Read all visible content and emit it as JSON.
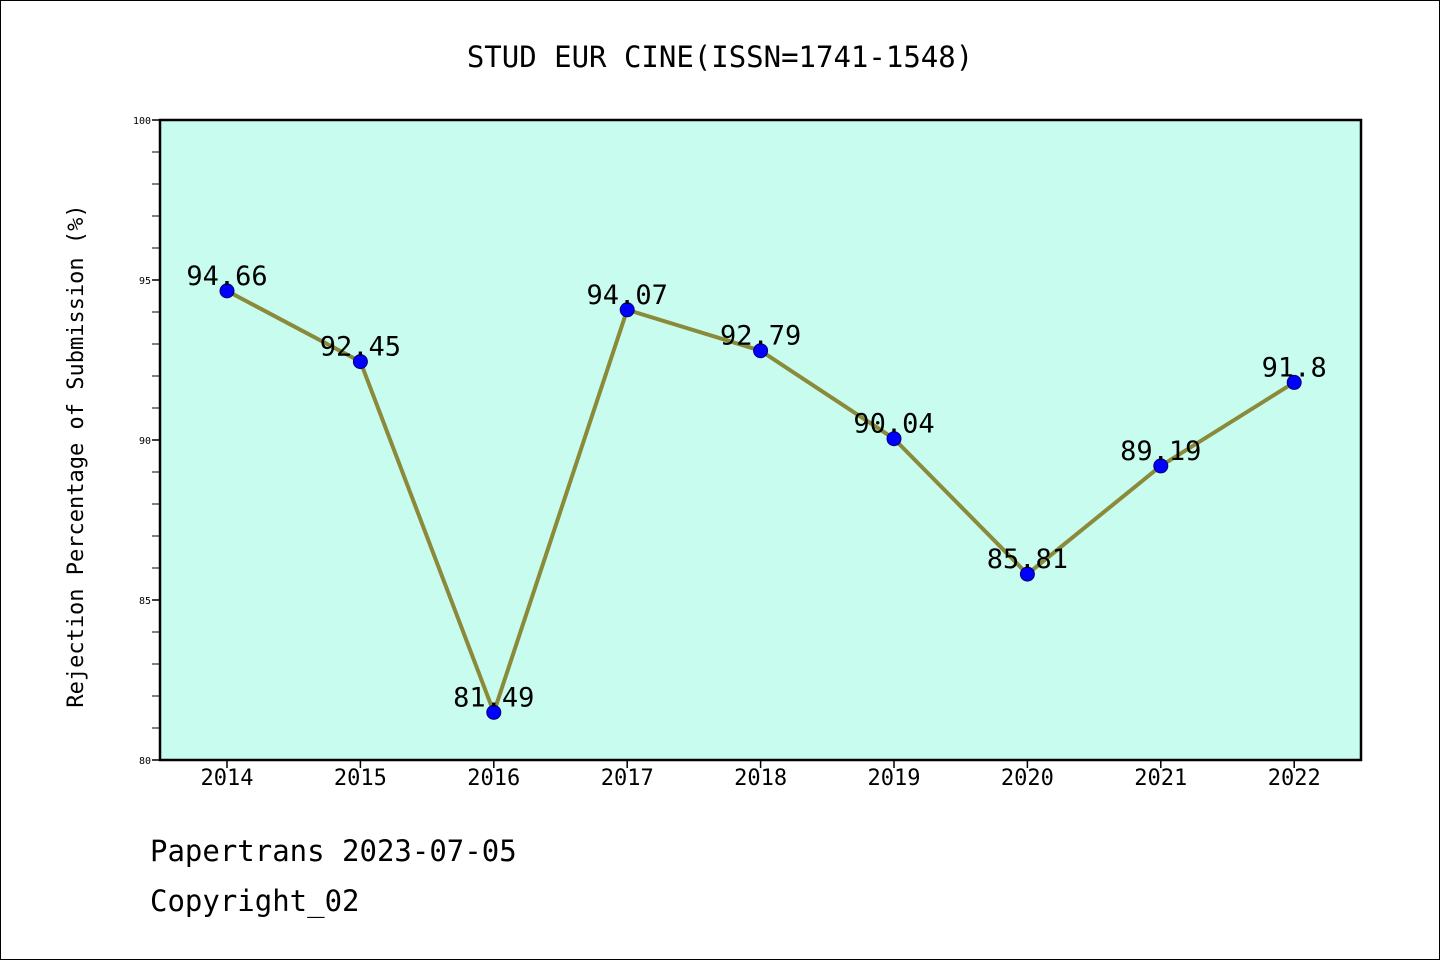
{
  "chart_data": {
    "type": "line",
    "title": "STUD EUR CINE(ISSN=1741-1548)",
    "xlabel": "",
    "ylabel": "Rejection Percentage of Submission (%)",
    "categories": [
      "2014",
      "2015",
      "2016",
      "2017",
      "2018",
      "2019",
      "2020",
      "2021",
      "2022"
    ],
    "series": [
      {
        "values": [
          94.66,
          92.45,
          81.49,
          94.07,
          92.79,
          90.04,
          85.81,
          89.19,
          91.8
        ],
        "labels": [
          "94.66",
          "92.45",
          "81.49",
          "94.07",
          "92.79",
          "90.04",
          "85.81",
          "89.19",
          "91.8"
        ],
        "line_color": "#8b8a3a",
        "marker_color": "#0000ff"
      }
    ],
    "ylim": [
      80,
      100
    ],
    "yticks": [
      80,
      85,
      90,
      95,
      100
    ],
    "ytick_labels": [
      "80",
      "85",
      "90",
      "95",
      "100"
    ],
    "plot_background": "#c8fcee",
    "grid": false,
    "legend": "none"
  },
  "footer": {
    "credit": "Papertrans 2023-07-05",
    "copyright": "Copyright_02"
  }
}
